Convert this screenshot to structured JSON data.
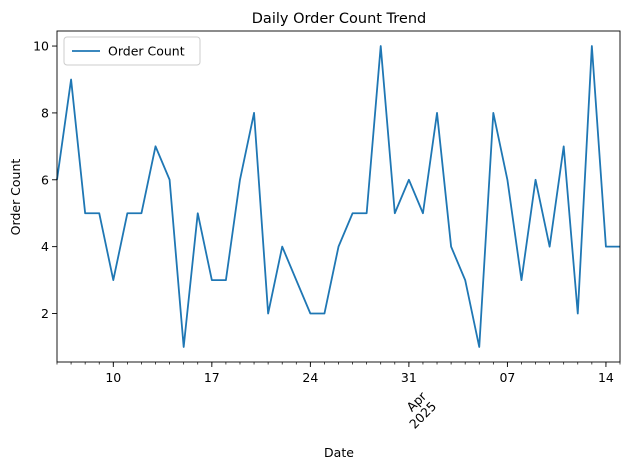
{
  "chart_data": {
    "type": "line",
    "title": "Daily Order Count Trend",
    "xlabel": "Date",
    "ylabel": "Order Count",
    "legend": {
      "placement": "upper-left",
      "entries": [
        "Order Count"
      ]
    },
    "grid": false,
    "color": "#1f77b4",
    "xlim": [
      "2025-03-06",
      "2025-04-15"
    ],
    "ylim": [
      0.55,
      10.45
    ],
    "x_ticks_major": [
      {
        "date": "2025-03-10",
        "label": "10"
      },
      {
        "date": "2025-03-17",
        "label": "17"
      },
      {
        "date": "2025-03-24",
        "label": "24"
      },
      {
        "date": "2025-03-31",
        "label": "31"
      },
      {
        "date": "2025-04-07",
        "label": "07"
      },
      {
        "date": "2025-04-14",
        "label": "14"
      }
    ],
    "x_period_label": {
      "date": "2025-04-01",
      "lines": [
        "Apr",
        "2025"
      ]
    },
    "y_ticks": [
      2,
      4,
      6,
      8,
      10
    ],
    "series": [
      {
        "name": "Order Count",
        "x": [
          "2025-03-06",
          "2025-03-07",
          "2025-03-08",
          "2025-03-09",
          "2025-03-10",
          "2025-03-11",
          "2025-03-12",
          "2025-03-13",
          "2025-03-14",
          "2025-03-15",
          "2025-03-16",
          "2025-03-17",
          "2025-03-18",
          "2025-03-19",
          "2025-03-20",
          "2025-03-21",
          "2025-03-22",
          "2025-03-23",
          "2025-03-24",
          "2025-03-25",
          "2025-03-26",
          "2025-03-27",
          "2025-03-28",
          "2025-03-29",
          "2025-03-30",
          "2025-03-31",
          "2025-04-01",
          "2025-04-02",
          "2025-04-03",
          "2025-04-04",
          "2025-04-05",
          "2025-04-06",
          "2025-04-07",
          "2025-04-08",
          "2025-04-09",
          "2025-04-10",
          "2025-04-11",
          "2025-04-12",
          "2025-04-13",
          "2025-04-14",
          "2025-04-15"
        ],
        "values": [
          6,
          9,
          5,
          5,
          3,
          5,
          5,
          7,
          6,
          1,
          5,
          3,
          3,
          6,
          8,
          2,
          4,
          3,
          2,
          2,
          4,
          5,
          5,
          10,
          5,
          6,
          5,
          8,
          4,
          3,
          1,
          8,
          6,
          3,
          6,
          4,
          7,
          2,
          10,
          4,
          4
        ]
      }
    ]
  }
}
